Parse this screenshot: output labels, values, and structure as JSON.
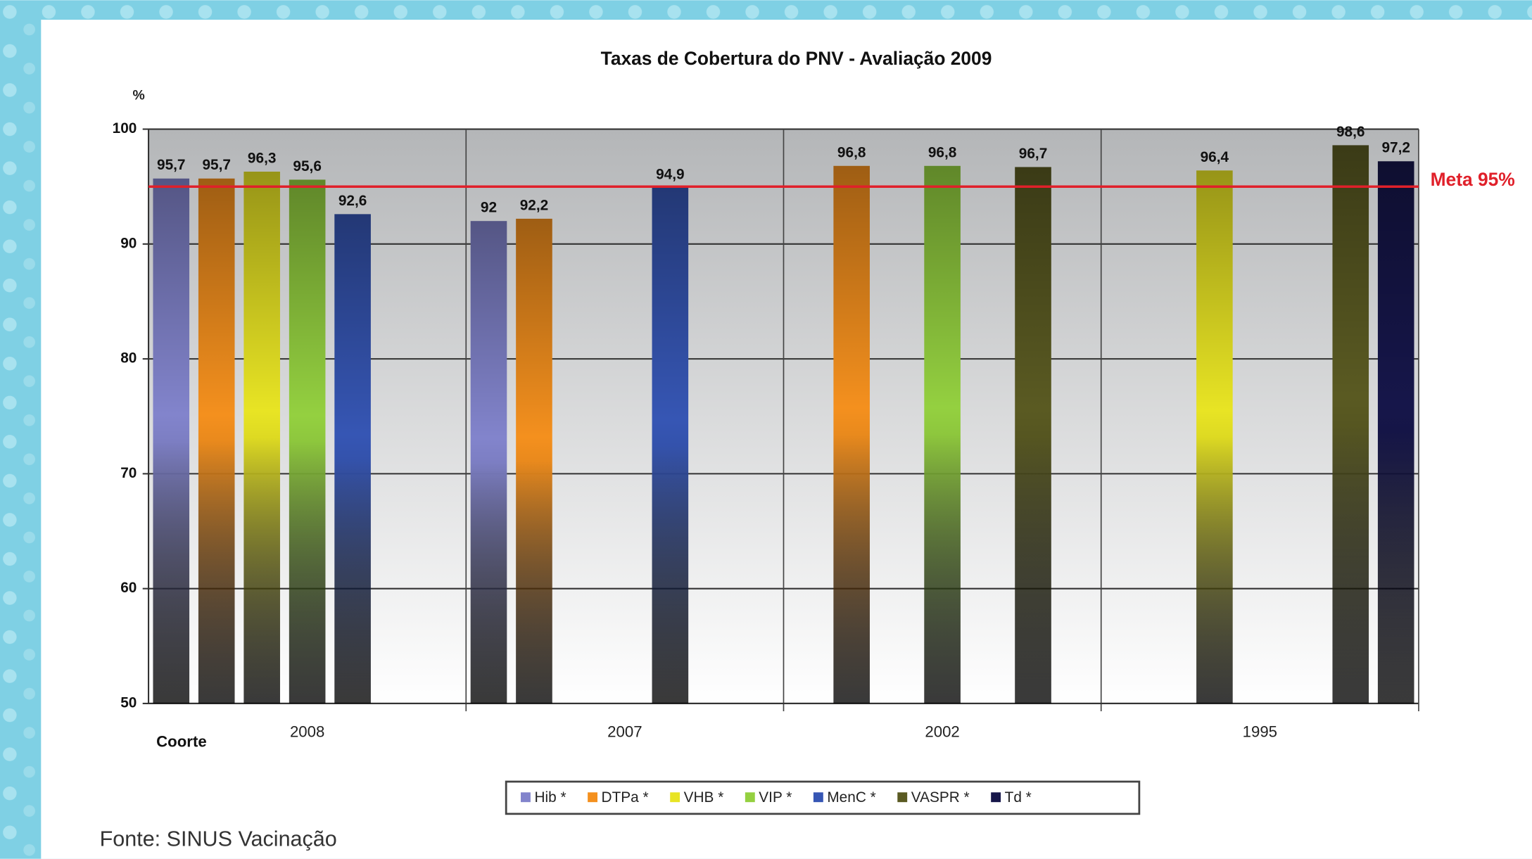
{
  "chart_data": {
    "type": "bar",
    "title": "Taxas de Cobertura do PNV - Avaliação 2009",
    "y_label": "%",
    "x_label": "Coorte",
    "source": "Fonte: SINUS Vacinação",
    "categories": [
      "2008",
      "2007",
      "2002",
      "1995"
    ],
    "series": [
      {
        "name": "Hib *",
        "color": "#8284cc",
        "values": [
          95.7,
          92,
          null,
          null
        ],
        "value_labels": [
          "95,7",
          "92",
          null,
          null
        ]
      },
      {
        "name": "DTPa *",
        "color": "#f4901e",
        "values": [
          95.7,
          92.2,
          96.8,
          null
        ],
        "value_labels": [
          "95,7",
          "92,2",
          "96,8",
          null
        ]
      },
      {
        "name": "VHB *",
        "color": "#e8e424",
        "values": [
          96.3,
          null,
          null,
          96.4
        ],
        "value_labels": [
          "96,3",
          null,
          null,
          "96,4"
        ]
      },
      {
        "name": "VIP *",
        "color": "#94d040",
        "values": [
          95.6,
          null,
          96.8,
          null
        ],
        "value_labels": [
          "95,6",
          null,
          "96,8",
          null
        ]
      },
      {
        "name": "MenC *",
        "color": "#3656b4",
        "values": [
          92.6,
          94.9,
          null,
          null
        ],
        "value_labels": [
          "92,6",
          "94,9",
          null,
          null
        ]
      },
      {
        "name": "VASPR *",
        "color": "#5a5a22",
        "values": [
          null,
          null,
          96.7,
          98.6
        ],
        "value_labels": [
          null,
          null,
          "96,7",
          "98,6"
        ]
      },
      {
        "name": "Td *",
        "color": "#16164a",
        "values": [
          null,
          null,
          null,
          97.2
        ],
        "value_labels": [
          null,
          null,
          null,
          "97,2"
        ]
      }
    ],
    "ylim": [
      50,
      100
    ],
    "yticks": [
      50,
      60,
      70,
      80,
      90,
      100
    ],
    "grid": true,
    "legend": "bottom",
    "reference_line": {
      "value": 95,
      "label": "Meta 95%",
      "color": "#e0202a"
    }
  }
}
